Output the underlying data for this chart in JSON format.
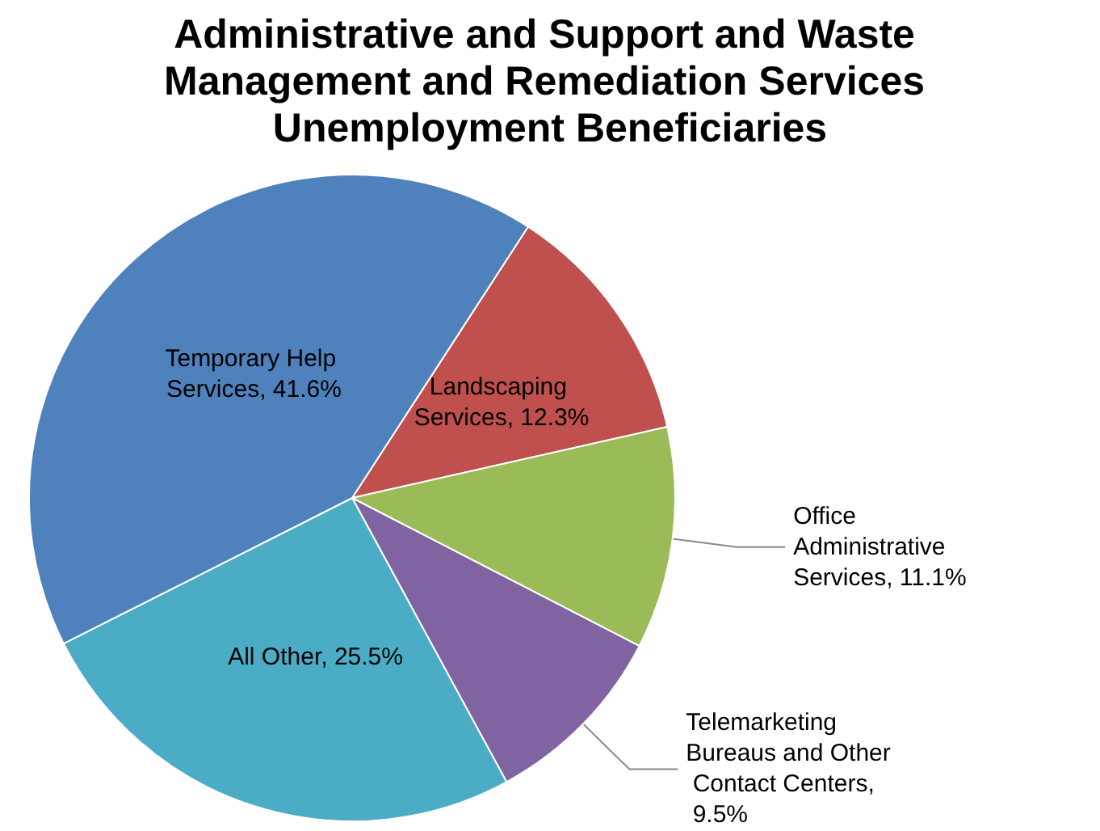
{
  "chart_data": {
    "type": "pie",
    "title": "Administrative and Support and Waste Management and Remediation Services Unemployment Beneficiaries",
    "categories": [
      "Landscaping Services, 12.3%",
      "Office Administrative Services, 11.1%",
      "Telemarketing Bureaus and Other Contact Centers, 9.5%",
      "All Other, 25.5%",
      "Temporary Help Services, 41.6%"
    ],
    "values": [
      12.3,
      11.1,
      9.5,
      25.5,
      41.6
    ],
    "colors": [
      "#c0504d",
      "#9bbb59",
      "#8064a2",
      "#4bacc6",
      "#4f81bd"
    ],
    "legend": false
  }
}
